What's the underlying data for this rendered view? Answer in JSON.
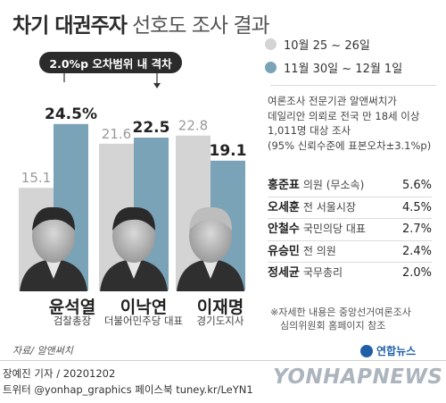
{
  "title": {
    "main": "차기 대권주자",
    "sub": "선호도 조사 결과"
  },
  "legend": [
    {
      "label": "10월 25 ~ 26일",
      "color": "#d4d4d4"
    },
    {
      "label": "11월 30일 ~ 12월 1일",
      "color": "#7aa3b8"
    }
  ],
  "margin_badge": "2.0%p 오차범위 내 격차",
  "survey_note": [
    "여론조사 전문기관 알앤써치가",
    "데일리안 의뢰로 전국 만 18세 이상",
    "1,011명 대상 조사",
    "(95% 신뢰수준에 표본오차±3.1%p)"
  ],
  "candidates": [
    {
      "name": "윤석열",
      "role": "검찰총장"
    },
    {
      "name": "이낙연",
      "role": "더불어민주당 대표"
    },
    {
      "name": "이재명",
      "role": "경기도지사"
    }
  ],
  "chart_data": {
    "type": "bar",
    "categories": [
      "윤석열",
      "이낙연",
      "이재명"
    ],
    "series": [
      {
        "name": "10월 25 ~ 26일",
        "values": [
          15.1,
          21.6,
          22.8
        ],
        "color": "#d4d4d4"
      },
      {
        "name": "11월 30일 ~ 12월 1일",
        "values": [
          24.5,
          22.5,
          19.1
        ],
        "color": "#7aa3b8"
      }
    ],
    "labels": [
      [
        "15.1",
        "24.5%"
      ],
      [
        "21.6",
        "22.5"
      ],
      [
        "22.8",
        "19.1"
      ]
    ],
    "ylim": [
      0,
      30
    ]
  },
  "others": [
    {
      "name": "홍준표",
      "role": "의원 (무소속)",
      "value": "5.6%"
    },
    {
      "name": "오세훈",
      "role": "전 서울시장",
      "value": "4.5%"
    },
    {
      "name": "안철수",
      "role": "국민의당 대표",
      "value": "2.7%"
    },
    {
      "name": "유승민",
      "role": "전 의원",
      "value": "2.4%"
    },
    {
      "name": "정세균",
      "role": "국무총리",
      "value": "2.0%"
    }
  ],
  "detail_note": [
    "※자세한 내용은 중앙선거여론조사",
    "심의위원회 홈페이지 참조"
  ],
  "source": "자료/ 알앤써치",
  "brand_small": "연합뉴스",
  "credit": "장예진 기자 / 20201202",
  "twitter": "트위터 @yonhap_graphics  페이스북 tuney.kr/LeYN1",
  "watermark": "YONHAPNEWS"
}
